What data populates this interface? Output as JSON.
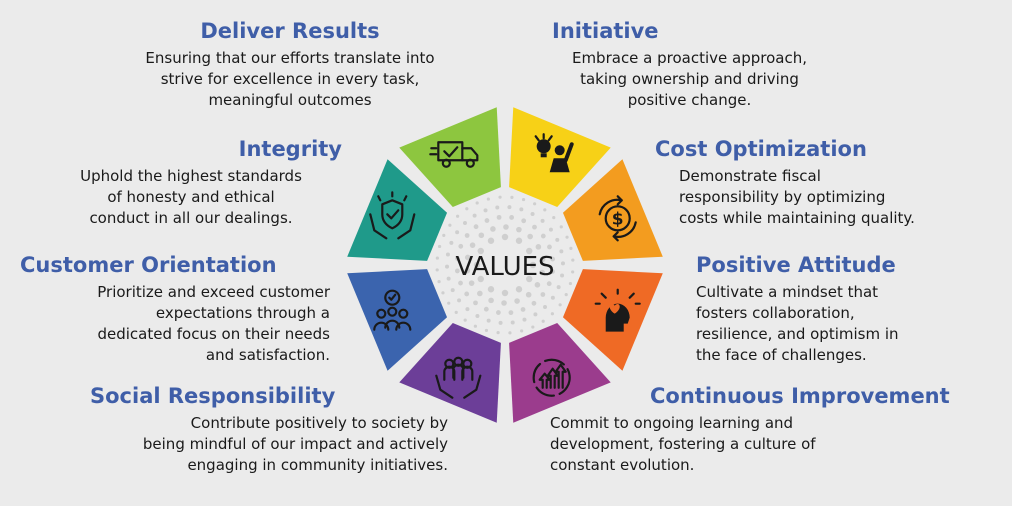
{
  "center_label": "VALUES",
  "values": [
    {
      "key": "deliver",
      "title": "Deliver Results",
      "lines": [
        "Ensuring that our efforts translate into",
        "strive for excellence in every task,",
        "meaningful outcomes"
      ],
      "color": "#8dc63f",
      "icon": "delivery-truck-icon"
    },
    {
      "key": "initiative",
      "title": "Initiative",
      "lines": [
        "Embrace a proactive approach,",
        "taking ownership and driving",
        "positive change."
      ],
      "color": "#f7d117",
      "icon": "idea-person-icon"
    },
    {
      "key": "cost",
      "title": "Cost Optimization",
      "lines": [
        "Demonstrate fiscal",
        "responsibility by optimizing",
        "costs while maintaining quality."
      ],
      "color": "#f39c1f",
      "icon": "dollar-cycle-icon"
    },
    {
      "key": "positive",
      "title": "Positive Attitude",
      "lines": [
        "Cultivate a mindset that",
        "fosters collaboration,",
        "resilience, and optimism in",
        "the face of challenges."
      ],
      "color": "#ef6a25",
      "icon": "heart-head-icon"
    },
    {
      "key": "continuous",
      "title": "Continuous Improvement",
      "lines": [
        "Commit to ongoing learning and",
        "development, fostering a culture of",
        "constant evolution."
      ],
      "color": "#9b3c8d",
      "icon": "growth-cycle-icon"
    },
    {
      "key": "social",
      "title": "Social Responsibility",
      "lines": [
        "Contribute positively to society by",
        "being mindful of our impact and actively",
        "engaging in community initiatives."
      ],
      "color": "#6c3e98",
      "icon": "community-hands-icon"
    },
    {
      "key": "customer",
      "title": "Customer Orientation",
      "lines": [
        "Prioritize and exceed customer",
        "expectations through a",
        "dedicated focus on their needs",
        "and satisfaction."
      ],
      "color": "#3b64ae",
      "icon": "customer-group-icon"
    },
    {
      "key": "integrity",
      "title": "Integrity",
      "lines": [
        "Uphold the highest standards",
        "of honesty and ethical",
        "conduct in all our dealings."
      ],
      "color": "#1f9a8a",
      "icon": "shield-hands-icon"
    }
  ]
}
